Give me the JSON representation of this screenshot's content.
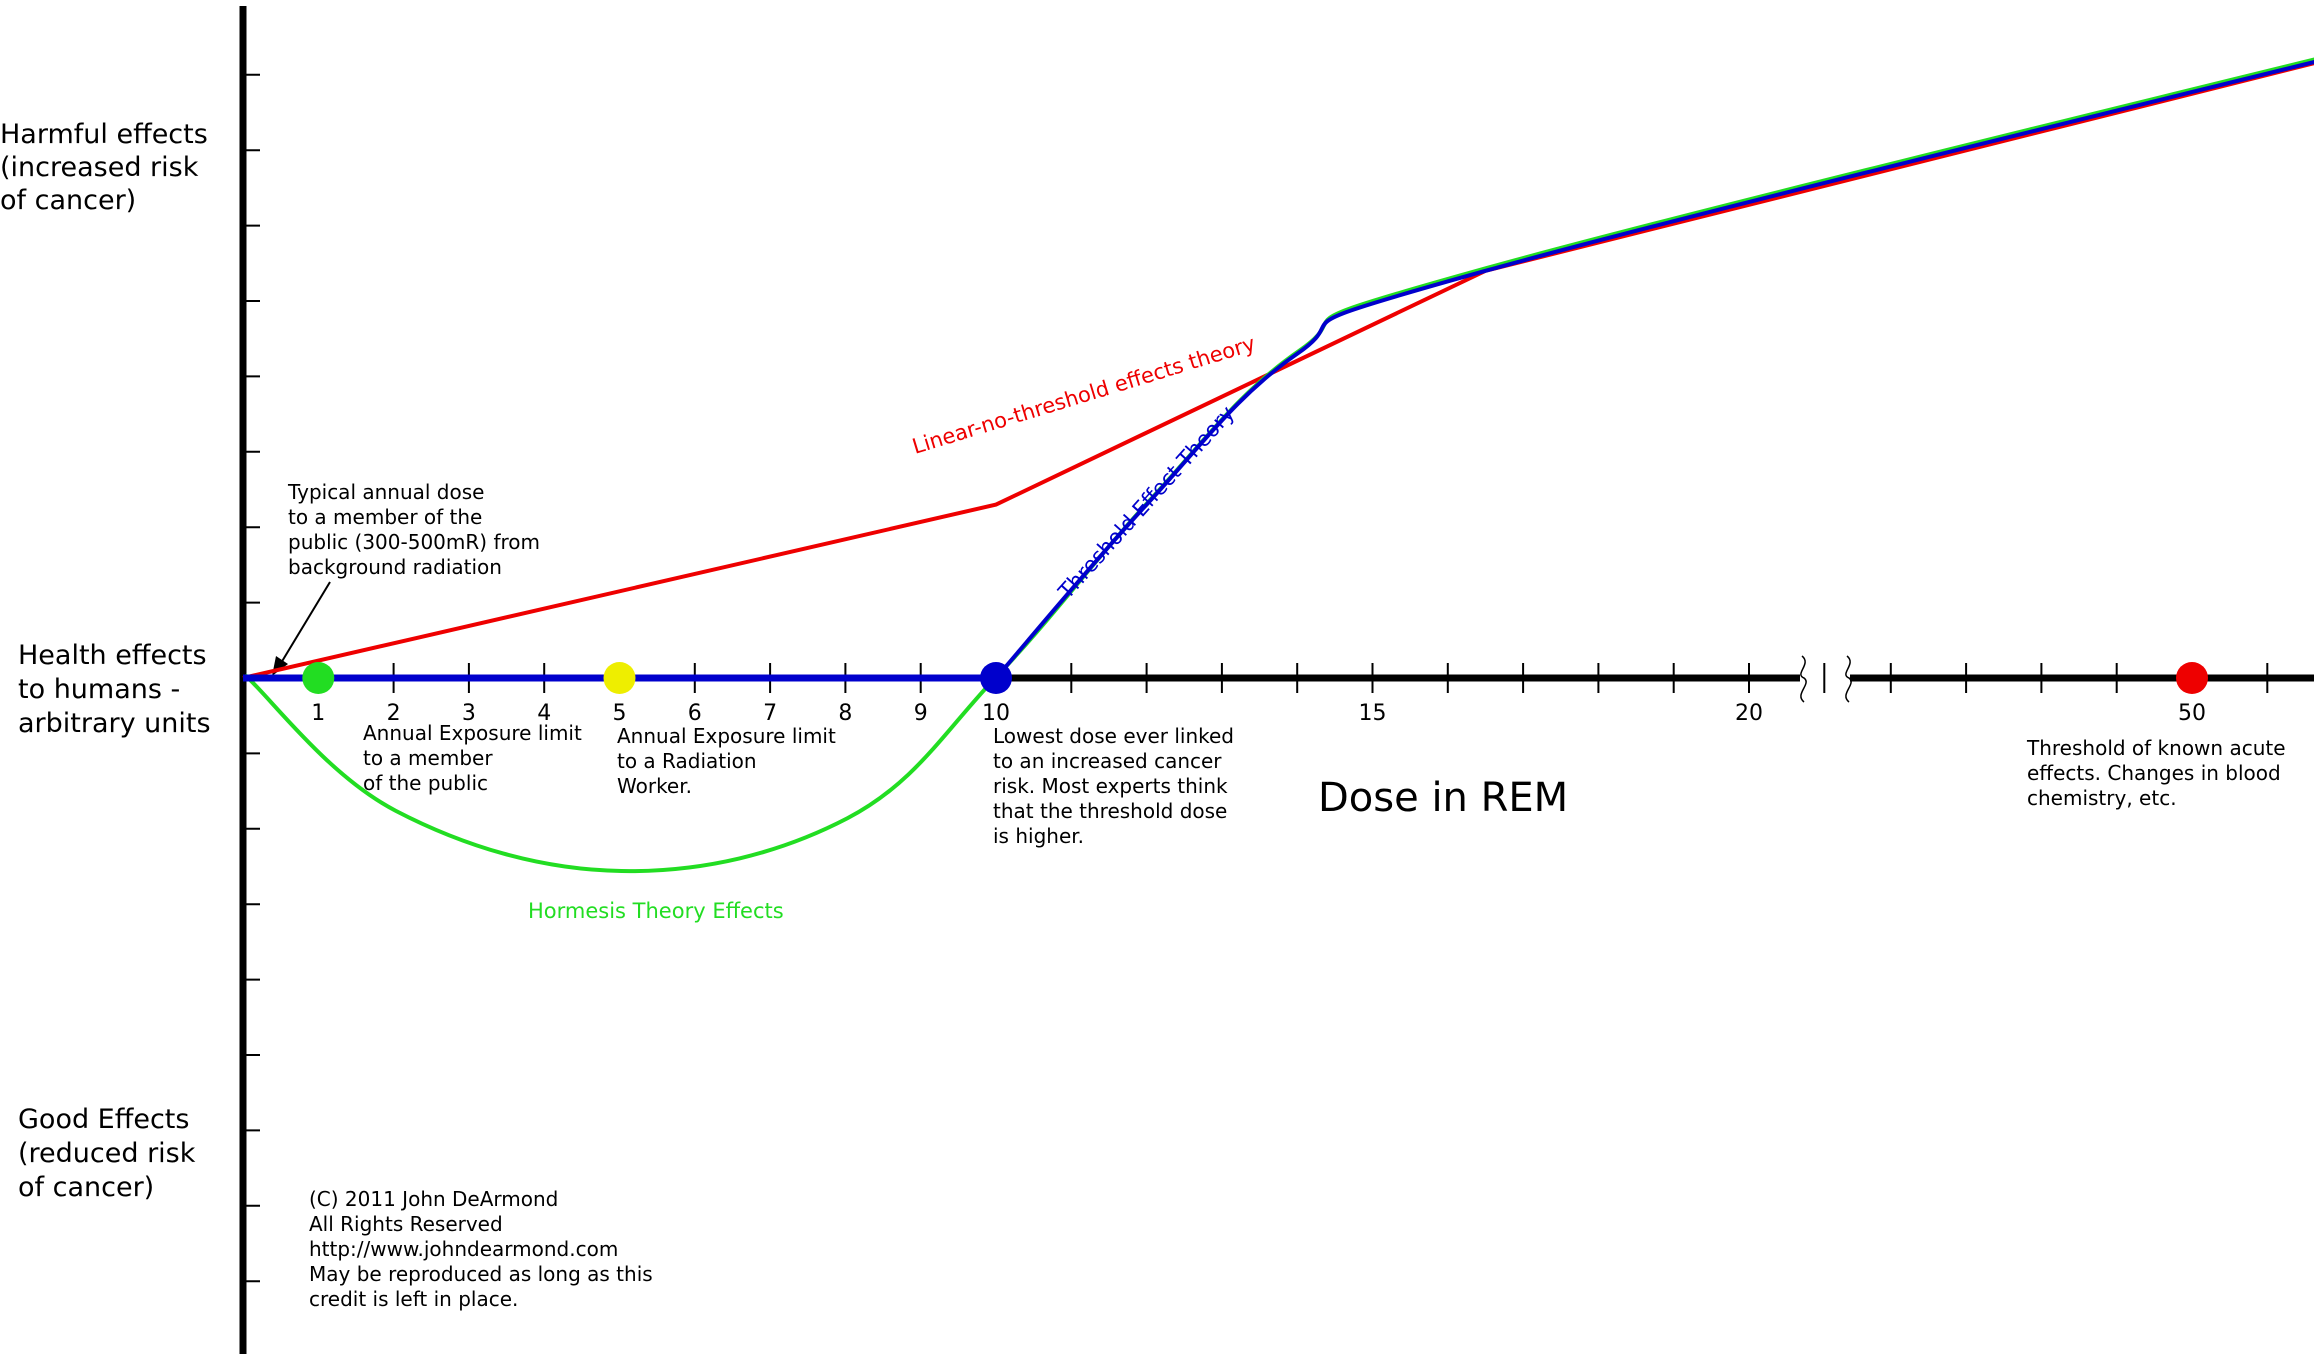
{
  "chart_data": {
    "type": "line",
    "title": "",
    "xlabel": "Dose in REM",
    "ylabel": "",
    "x_ticks_near": [
      "1",
      "2",
      "3",
      "4",
      "5",
      "6",
      "7",
      "8",
      "9",
      "10",
      "15",
      "20"
    ],
    "x_ticks_far": [
      "50"
    ],
    "xlim": [
      0,
      55
    ],
    "ylim": [
      -8,
      9
    ],
    "y_labels": {
      "top": [
        "Harmful effects",
        "(increased risk",
        "of cancer)"
      ],
      "middle": [
        "Health effects",
        "to humans -",
        "arbitrary units"
      ],
      "bottom": [
        "Good Effects",
        "(reduced risk",
        "of cancer)"
      ]
    },
    "series": [
      {
        "name": "Linear-no-threshold effects theory",
        "color": "#ee0000",
        "x": [
          0,
          10,
          16.5,
          55
        ],
        "y": [
          0,
          2.3,
          5.4,
          9.0
        ]
      },
      {
        "name": "Threshold Effect Theory",
        "color": "#0000cc",
        "x": [
          0,
          10,
          12,
          14,
          16.5,
          55
        ],
        "y": [
          0,
          0,
          2.3,
          4.3,
          5.4,
          9.0
        ]
      },
      {
        "name": "Hormesis Theory Effects",
        "color": "#22dd22",
        "x": [
          0,
          2,
          5,
          8,
          10,
          12,
          14,
          16.5,
          55
        ],
        "y": [
          0,
          -1.8,
          -2.6,
          -1.9,
          0,
          2.3,
          4.3,
          5.4,
          9.0
        ]
      }
    ],
    "markers": [
      {
        "x": 1,
        "color": "#22dd22",
        "label": [
          "Annual Exposure limit",
          "to a member",
          "of the public"
        ]
      },
      {
        "x": 5,
        "color": "#eeee00",
        "label": [
          "Annual Exposure limit",
          "to a Radiation",
          "Worker."
        ]
      },
      {
        "x": 10,
        "color": "#0000cc",
        "label": [
          "Lowest dose ever linked",
          "to an increased cancer",
          "risk. Most experts think",
          "that the threshold dose",
          "is higher."
        ]
      },
      {
        "x": 50,
        "color": "#ee0000",
        "label": [
          "Threshold of known acute",
          "effects.  Changes in blood",
          "chemistry, etc."
        ]
      }
    ],
    "annotations": {
      "background": [
        "Typical annual dose",
        "to a member of the",
        "public (300-500mR) from",
        "background radiation"
      ]
    },
    "credit": [
      "(C) 2011 John DeArmond",
      "All Rights Reserved",
      "http://www.johndearmond.com",
      "May be reproduced as long as this",
      "credit is left in place."
    ],
    "grid": false,
    "legend": "none"
  }
}
